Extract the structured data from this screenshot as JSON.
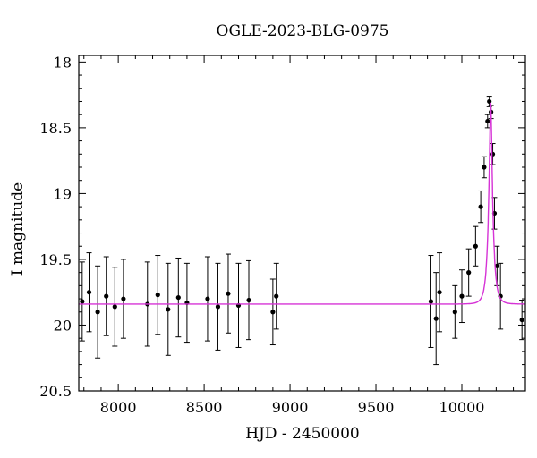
{
  "chart_data": {
    "type": "scatter",
    "title": "OGLE-2023-BLG-0975",
    "xlabel": "HJD - 2450000",
    "ylabel": "I magnitude",
    "xlim": [
      7770,
      10370
    ],
    "ylim": [
      20.5,
      17.95
    ],
    "y_inverted": true,
    "x_ticks": [
      8000,
      8500,
      9000,
      9500,
      10000
    ],
    "x_tick_labels": [
      "8000",
      "8500",
      "9000",
      "9500",
      "10000"
    ],
    "y_ticks": [
      18,
      18.5,
      19,
      19.5,
      20,
      20.5
    ],
    "y_tick_labels": [
      "18",
      "18.5",
      "19",
      "19.5",
      "20",
      "20.5"
    ],
    "grid": false,
    "colors": {
      "points": "#000000",
      "model": "#d633d6",
      "frame": "#000000"
    },
    "series": [
      {
        "kind": "points-with-errorbars",
        "x": [
          7790,
          7830,
          7880,
          7930,
          7980,
          8030,
          8170,
          8230,
          8290,
          8350,
          8400,
          8520,
          8580,
          8640,
          8700,
          8760,
          8900,
          8920,
          9820,
          9850,
          9870,
          9960,
          10000,
          10040,
          10080,
          10110,
          10130,
          10150,
          10160,
          10170,
          10180,
          10190,
          10205,
          10225,
          10350
        ],
        "y": [
          19.82,
          19.75,
          19.9,
          19.78,
          19.86,
          19.8,
          19.84,
          19.77,
          19.88,
          19.79,
          19.83,
          19.8,
          19.86,
          19.76,
          19.85,
          19.81,
          19.9,
          19.78,
          19.82,
          19.95,
          19.75,
          19.9,
          19.78,
          19.6,
          19.4,
          19.1,
          18.8,
          18.45,
          18.3,
          18.38,
          18.7,
          19.15,
          19.55,
          19.78,
          19.96
        ],
        "err": [
          0.3,
          0.3,
          0.35,
          0.3,
          0.3,
          0.3,
          0.32,
          0.3,
          0.35,
          0.3,
          0.3,
          0.32,
          0.33,
          0.3,
          0.32,
          0.3,
          0.25,
          0.25,
          0.35,
          0.35,
          0.3,
          0.2,
          0.2,
          0.18,
          0.15,
          0.12,
          0.08,
          0.05,
          0.04,
          0.05,
          0.08,
          0.12,
          0.15,
          0.25,
          0.15
        ]
      },
      {
        "kind": "model-curve",
        "baseline": 19.84,
        "peak_time": 10168,
        "peak_mag": 18.31,
        "x_range": [
          7770,
          10370
        ]
      }
    ]
  }
}
